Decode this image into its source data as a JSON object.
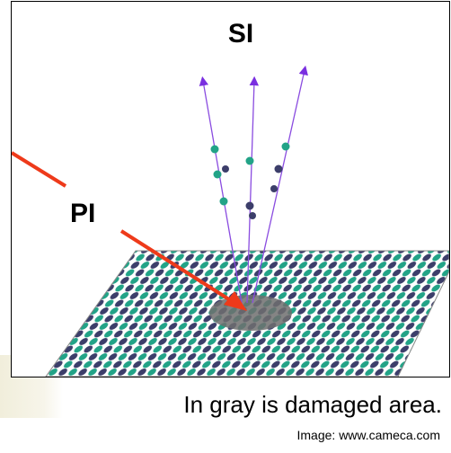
{
  "diagram": {
    "secondary_label": "SI",
    "primary_label": "PI"
  },
  "caption": "In gray is damaged area.",
  "credit": "Image: www.cameca.com"
}
